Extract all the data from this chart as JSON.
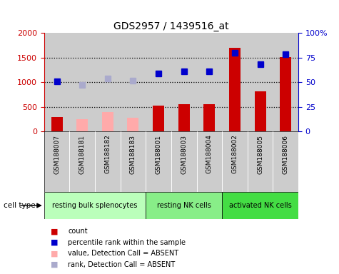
{
  "title": "GDS2957 / 1439516_at",
  "samples": [
    "GSM188007",
    "GSM188181",
    "GSM188182",
    "GSM188183",
    "GSM188001",
    "GSM188003",
    "GSM188004",
    "GSM188002",
    "GSM188005",
    "GSM188006"
  ],
  "count_values": [
    300,
    null,
    null,
    null,
    530,
    550,
    555,
    1700,
    820,
    1510
  ],
  "count_absent_values": [
    null,
    250,
    400,
    280,
    null,
    null,
    null,
    null,
    null,
    null
  ],
  "rank_values_left": [
    1020,
    null,
    null,
    null,
    1180,
    1220,
    1215,
    1590,
    1360,
    1570
  ],
  "rank_absent_values_left": [
    null,
    950,
    1080,
    1030,
    null,
    null,
    null,
    null,
    null,
    null
  ],
  "groups": [
    {
      "label": "resting bulk splenocytes",
      "start": 0,
      "end": 3,
      "color": "#bbffbb"
    },
    {
      "label": "resting NK cells",
      "start": 4,
      "end": 6,
      "color": "#88ee88"
    },
    {
      "label": "activated NK cells",
      "start": 7,
      "end": 9,
      "color": "#44dd44"
    }
  ],
  "ylim_left": [
    0,
    2000
  ],
  "ylim_right": [
    0,
    100
  ],
  "yticks_left": [
    0,
    500,
    1000,
    1500,
    2000
  ],
  "yticks_right": [
    0,
    25,
    50,
    75,
    100
  ],
  "ytick_labels_right": [
    "0",
    "25",
    "50",
    "75",
    "100%"
  ],
  "bar_color_present": "#cc0000",
  "bar_color_absent": "#ffaaaa",
  "dot_color_present": "#0000cc",
  "dot_color_absent": "#aaaacc",
  "sample_bg_color": "#cccccc",
  "left_axis_color": "#cc0000",
  "right_axis_color": "#0000cc",
  "legend_items": [
    {
      "color": "#cc0000",
      "label": "count"
    },
    {
      "color": "#0000cc",
      "label": "percentile rank within the sample"
    },
    {
      "color": "#ffaaaa",
      "label": "value, Detection Call = ABSENT"
    },
    {
      "color": "#aaaacc",
      "label": "rank, Detection Call = ABSENT"
    }
  ]
}
